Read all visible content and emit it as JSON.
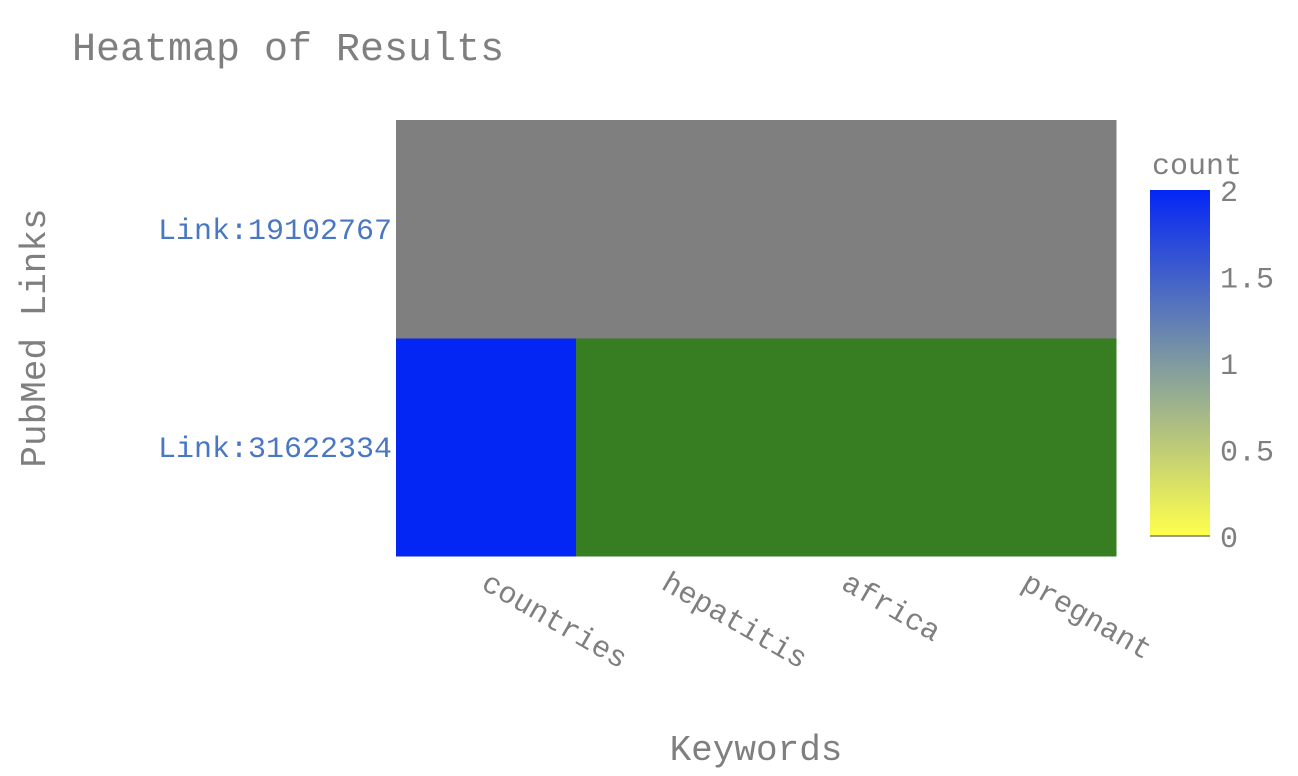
{
  "chart_data": {
    "type": "heatmap",
    "title": "Heatmap of Results",
    "xlabel": "Keywords",
    "ylabel": "PubMed Links",
    "x": [
      "countries",
      "hepatitis",
      "africa",
      "pregnant"
    ],
    "y": [
      "Link:31622334",
      "Link:19102767"
    ],
    "z": [
      [
        2,
        null,
        null,
        null
      ],
      [
        null,
        null,
        null,
        null
      ]
    ],
    "cell_colors": [
      [
        "#0426f5",
        "#377d22",
        "#377d22",
        "#377d22"
      ],
      [
        "#7f7f7f",
        "#7f7f7f",
        "#7f7f7f",
        "#7f7f7f"
      ]
    ],
    "colorbar": {
      "title": "count",
      "range": [
        0,
        2
      ],
      "ticks": [
        "0",
        "0.5",
        "1",
        "1.5",
        "2"
      ],
      "colors": [
        "#ffff4d",
        "#7f9aa0",
        "#0426f5"
      ]
    },
    "grid": false
  }
}
